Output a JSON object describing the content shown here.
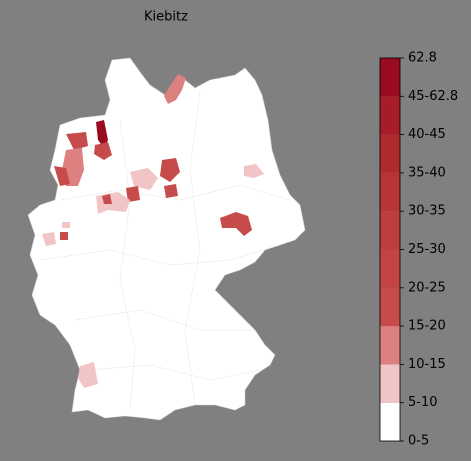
{
  "title": "Kiebitz",
  "colorbar": {
    "labels": [
      "0-5",
      "5-10",
      "10-15",
      "15-20",
      "20-25",
      "25-30",
      "30-35",
      "35-40",
      "40-45",
      "45-62.8",
      "62.8"
    ],
    "colors": [
      "#ffffff",
      "#f1c5c5",
      "#dc8080",
      "#c84b4b",
      "#c34444",
      "#be3d3d",
      "#b83535",
      "#b02b2d",
      "#a61c28",
      "#990b20"
    ]
  }
}
